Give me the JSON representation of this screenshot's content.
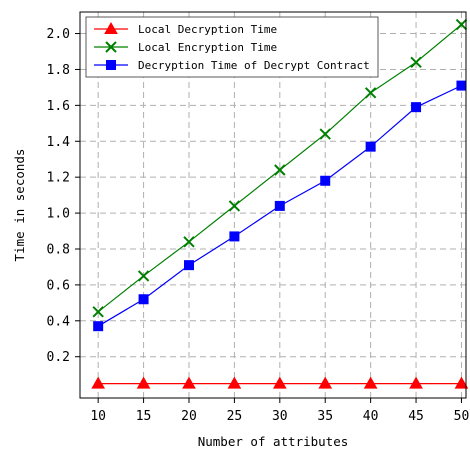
{
  "chart_data": {
    "type": "line",
    "title": "",
    "xlabel": "Number of attributes",
    "ylabel": "Time in seconds",
    "x": [
      10,
      15,
      20,
      25,
      30,
      35,
      40,
      45,
      50
    ],
    "xticks": [
      "10",
      "15",
      "20",
      "25",
      "30",
      "35",
      "40",
      "45",
      "50"
    ],
    "yticks": [
      "0.2",
      "0.4",
      "0.6",
      "0.8",
      "1.0",
      "1.2",
      "1.4",
      "1.6",
      "1.8",
      "2.0"
    ],
    "xlim": [
      8,
      50.5
    ],
    "ylim": [
      -0.03,
      2.12
    ],
    "grid": true,
    "legend_position": "top-left",
    "series": [
      {
        "name": "Local Decryption Time",
        "color": "#ff0000",
        "marker": "triangle",
        "values": [
          0.05,
          0.05,
          0.05,
          0.05,
          0.05,
          0.05,
          0.05,
          0.05,
          0.05
        ]
      },
      {
        "name": "Local Encryption Time",
        "color": "#008000",
        "marker": "x",
        "values": [
          0.45,
          0.65,
          0.84,
          1.04,
          1.24,
          1.44,
          1.67,
          1.84,
          2.05
        ]
      },
      {
        "name": "Decryption Time of Decrypt Contract",
        "color": "#0000ff",
        "marker": "square",
        "values": [
          0.37,
          0.52,
          0.71,
          0.87,
          1.04,
          1.18,
          1.37,
          1.59,
          1.71
        ]
      }
    ]
  }
}
